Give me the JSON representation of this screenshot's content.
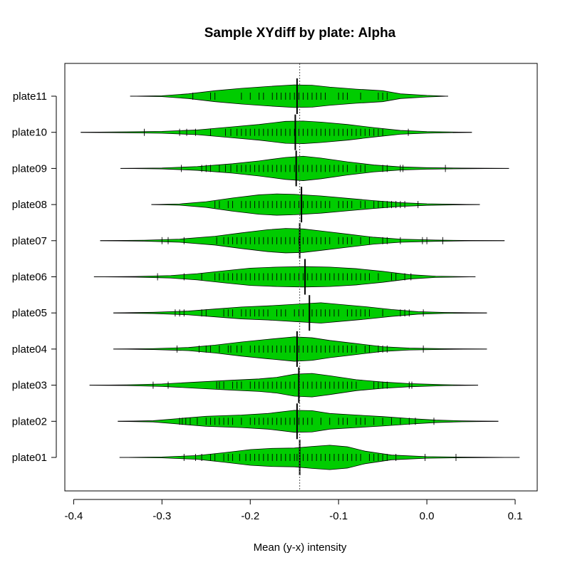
{
  "chart_data": {
    "type": "beanplot",
    "title": "Sample XYdiff by plate:  Alpha",
    "xlabel": "Mean (y-x) intensity",
    "ylabel": "",
    "xlim": [
      -0.41,
      0.125
    ],
    "x_ticks": [
      -0.4,
      -0.3,
      -0.2,
      -0.1,
      0.0,
      0.1
    ],
    "x_tick_labels": [
      "-0.4",
      "-0.3",
      "-0.2",
      "-0.1",
      "0.0",
      "0.1"
    ],
    "overall_mean": -0.144,
    "fill_color": "#00cc00",
    "categories": [
      "plate01",
      "plate02",
      "plate03",
      "plate04",
      "plate05",
      "plate06",
      "plate07",
      "plate08",
      "plate09",
      "plate10",
      "plate11"
    ],
    "series": [
      {
        "name": "plate01",
        "min": -0.348,
        "max": 0.105,
        "mean": -0.144,
        "shape": [
          [
            -0.348,
            0.0
          ],
          [
            -0.3,
            0.03
          ],
          [
            -0.26,
            0.12
          ],
          [
            -0.23,
            0.3
          ],
          [
            -0.2,
            0.5
          ],
          [
            -0.175,
            0.58
          ],
          [
            -0.15,
            0.6
          ],
          [
            -0.13,
            0.7
          ],
          [
            -0.11,
            0.78
          ],
          [
            -0.09,
            0.68
          ],
          [
            -0.07,
            0.4
          ],
          [
            -0.04,
            0.15
          ],
          [
            0.0,
            0.05
          ],
          [
            0.04,
            0.02
          ],
          [
            0.105,
            0.0
          ]
        ],
        "rugs": [
          -0.275,
          -0.262,
          -0.255,
          -0.245,
          -0.24,
          -0.23,
          -0.225,
          -0.22,
          -0.212,
          -0.205,
          -0.2,
          -0.195,
          -0.19,
          -0.185,
          -0.18,
          -0.175,
          -0.17,
          -0.165,
          -0.16,
          -0.155,
          -0.15,
          -0.147,
          -0.14,
          -0.135,
          -0.13,
          -0.125,
          -0.12,
          -0.115,
          -0.11,
          -0.105,
          -0.1,
          -0.095,
          -0.09,
          -0.085,
          -0.08,
          -0.075,
          -0.065,
          -0.06,
          -0.055,
          -0.05,
          -0.045,
          -0.035,
          -0.002,
          0.033
        ]
      },
      {
        "name": "plate02",
        "min": -0.35,
        "max": 0.081,
        "mean": -0.147,
        "shape": [
          [
            -0.35,
            0.0
          ],
          [
            -0.31,
            0.04
          ],
          [
            -0.28,
            0.18
          ],
          [
            -0.25,
            0.32
          ],
          [
            -0.21,
            0.4
          ],
          [
            -0.18,
            0.5
          ],
          [
            -0.15,
            0.7
          ],
          [
            -0.13,
            0.68
          ],
          [
            -0.11,
            0.5
          ],
          [
            -0.08,
            0.4
          ],
          [
            -0.05,
            0.3
          ],
          [
            -0.02,
            0.18
          ],
          [
            0.01,
            0.08
          ],
          [
            0.04,
            0.03
          ],
          [
            0.081,
            0.0
          ]
        ],
        "rugs": [
          -0.28,
          -0.277,
          -0.273,
          -0.268,
          -0.26,
          -0.25,
          -0.245,
          -0.24,
          -0.235,
          -0.23,
          -0.225,
          -0.22,
          -0.21,
          -0.2,
          -0.195,
          -0.19,
          -0.185,
          -0.18,
          -0.175,
          -0.17,
          -0.165,
          -0.16,
          -0.155,
          -0.15,
          -0.145,
          -0.14,
          -0.135,
          -0.13,
          -0.12,
          -0.11,
          -0.1,
          -0.095,
          -0.09,
          -0.08,
          -0.075,
          -0.07,
          -0.06,
          -0.05,
          -0.04,
          -0.03,
          -0.02,
          -0.013,
          0.008
        ]
      },
      {
        "name": "plate03",
        "min": -0.382,
        "max": 0.058,
        "mean": -0.145,
        "shape": [
          [
            -0.382,
            0.0
          ],
          [
            -0.34,
            0.02
          ],
          [
            -0.3,
            0.08
          ],
          [
            -0.26,
            0.2
          ],
          [
            -0.22,
            0.32
          ],
          [
            -0.19,
            0.4
          ],
          [
            -0.17,
            0.5
          ],
          [
            -0.15,
            0.7
          ],
          [
            -0.13,
            0.75
          ],
          [
            -0.11,
            0.6
          ],
          [
            -0.08,
            0.35
          ],
          [
            -0.05,
            0.2
          ],
          [
            -0.02,
            0.1
          ],
          [
            0.02,
            0.03
          ],
          [
            0.058,
            0.0
          ]
        ],
        "rugs": [
          -0.31,
          -0.293,
          -0.238,
          -0.235,
          -0.23,
          -0.22,
          -0.215,
          -0.21,
          -0.2,
          -0.195,
          -0.19,
          -0.185,
          -0.18,
          -0.175,
          -0.17,
          -0.165,
          -0.16,
          -0.155,
          -0.15,
          -0.145,
          -0.14,
          -0.135,
          -0.13,
          -0.125,
          -0.12,
          -0.115,
          -0.11,
          -0.105,
          -0.1,
          -0.095,
          -0.09,
          -0.085,
          -0.08,
          -0.06,
          -0.055,
          -0.05,
          -0.045,
          -0.02,
          -0.017
        ]
      },
      {
        "name": "plate04",
        "min": -0.355,
        "max": 0.068,
        "mean": -0.147,
        "shape": [
          [
            -0.355,
            0.0
          ],
          [
            -0.31,
            0.03
          ],
          [
            -0.27,
            0.1
          ],
          [
            -0.24,
            0.25
          ],
          [
            -0.21,
            0.45
          ],
          [
            -0.18,
            0.62
          ],
          [
            -0.15,
            0.78
          ],
          [
            -0.13,
            0.72
          ],
          [
            -0.11,
            0.55
          ],
          [
            -0.08,
            0.35
          ],
          [
            -0.05,
            0.15
          ],
          [
            -0.02,
            0.06
          ],
          [
            0.02,
            0.02
          ],
          [
            0.068,
            0.0
          ]
        ],
        "rugs": [
          -0.283,
          -0.258,
          -0.25,
          -0.245,
          -0.235,
          -0.225,
          -0.222,
          -0.215,
          -0.21,
          -0.2,
          -0.195,
          -0.19,
          -0.185,
          -0.18,
          -0.175,
          -0.17,
          -0.165,
          -0.16,
          -0.155,
          -0.15,
          -0.145,
          -0.14,
          -0.135,
          -0.13,
          -0.125,
          -0.12,
          -0.115,
          -0.11,
          -0.105,
          -0.1,
          -0.095,
          -0.09,
          -0.085,
          -0.08,
          -0.07,
          -0.065,
          -0.055,
          -0.05,
          -0.045,
          -0.004
        ]
      },
      {
        "name": "plate05",
        "min": -0.355,
        "max": 0.068,
        "mean": -0.133,
        "shape": [
          [
            -0.355,
            0.0
          ],
          [
            -0.31,
            0.04
          ],
          [
            -0.27,
            0.12
          ],
          [
            -0.24,
            0.25
          ],
          [
            -0.21,
            0.38
          ],
          [
            -0.18,
            0.45
          ],
          [
            -0.15,
            0.55
          ],
          [
            -0.12,
            0.65
          ],
          [
            -0.1,
            0.55
          ],
          [
            -0.07,
            0.4
          ],
          [
            -0.04,
            0.22
          ],
          [
            -0.01,
            0.08
          ],
          [
            0.02,
            0.03
          ],
          [
            0.068,
            0.0
          ]
        ],
        "rugs": [
          -0.285,
          -0.28,
          -0.275,
          -0.255,
          -0.25,
          -0.23,
          -0.225,
          -0.22,
          -0.21,
          -0.205,
          -0.2,
          -0.195,
          -0.19,
          -0.185,
          -0.18,
          -0.17,
          -0.165,
          -0.16,
          -0.15,
          -0.145,
          -0.14,
          -0.13,
          -0.125,
          -0.12,
          -0.115,
          -0.11,
          -0.105,
          -0.1,
          -0.09,
          -0.085,
          -0.08,
          -0.075,
          -0.07,
          -0.065,
          -0.05,
          -0.03,
          -0.025,
          -0.02,
          -0.004
        ]
      },
      {
        "name": "plate06",
        "min": -0.377,
        "max": 0.055,
        "mean": -0.138,
        "shape": [
          [
            -0.377,
            0.0
          ],
          [
            -0.33,
            0.02
          ],
          [
            -0.29,
            0.08
          ],
          [
            -0.26,
            0.2
          ],
          [
            -0.23,
            0.38
          ],
          [
            -0.2,
            0.55
          ],
          [
            -0.17,
            0.62
          ],
          [
            -0.14,
            0.65
          ],
          [
            -0.11,
            0.62
          ],
          [
            -0.08,
            0.52
          ],
          [
            -0.05,
            0.35
          ],
          [
            -0.02,
            0.14
          ],
          [
            0.01,
            0.04
          ],
          [
            0.055,
            0.0
          ]
        ],
        "rugs": [
          -0.305,
          -0.275,
          -0.255,
          -0.24,
          -0.235,
          -0.23,
          -0.225,
          -0.22,
          -0.215,
          -0.21,
          -0.205,
          -0.2,
          -0.195,
          -0.19,
          -0.185,
          -0.18,
          -0.175,
          -0.17,
          -0.165,
          -0.16,
          -0.155,
          -0.15,
          -0.145,
          -0.14,
          -0.135,
          -0.13,
          -0.125,
          -0.12,
          -0.115,
          -0.11,
          -0.105,
          -0.1,
          -0.095,
          -0.09,
          -0.085,
          -0.08,
          -0.075,
          -0.07,
          -0.065,
          -0.055,
          -0.04,
          -0.035,
          -0.025,
          -0.018
        ]
      },
      {
        "name": "plate07",
        "min": -0.37,
        "max": 0.088,
        "mean": -0.144,
        "shape": [
          [
            -0.37,
            0.0
          ],
          [
            -0.32,
            0.03
          ],
          [
            -0.28,
            0.1
          ],
          [
            -0.24,
            0.28
          ],
          [
            -0.21,
            0.5
          ],
          [
            -0.18,
            0.7
          ],
          [
            -0.16,
            0.78
          ],
          [
            -0.14,
            0.75
          ],
          [
            -0.12,
            0.62
          ],
          [
            -0.09,
            0.42
          ],
          [
            -0.06,
            0.22
          ],
          [
            -0.03,
            0.1
          ],
          [
            0.01,
            0.04
          ],
          [
            0.05,
            0.01
          ],
          [
            0.088,
            0.0
          ]
        ],
        "rugs": [
          -0.3,
          -0.293,
          -0.275,
          -0.238,
          -0.23,
          -0.225,
          -0.22,
          -0.215,
          -0.21,
          -0.205,
          -0.2,
          -0.195,
          -0.19,
          -0.185,
          -0.18,
          -0.175,
          -0.17,
          -0.165,
          -0.16,
          -0.155,
          -0.15,
          -0.145,
          -0.14,
          -0.135,
          -0.13,
          -0.125,
          -0.12,
          -0.115,
          -0.11,
          -0.1,
          -0.095,
          -0.09,
          -0.085,
          -0.075,
          -0.065,
          -0.05,
          -0.045,
          -0.03,
          -0.005,
          0.0,
          0.018
        ]
      },
      {
        "name": "plate08",
        "min": -0.312,
        "max": 0.06,
        "mean": -0.142,
        "shape": [
          [
            -0.312,
            0.0
          ],
          [
            -0.28,
            0.04
          ],
          [
            -0.25,
            0.18
          ],
          [
            -0.22,
            0.42
          ],
          [
            -0.19,
            0.62
          ],
          [
            -0.17,
            0.68
          ],
          [
            -0.15,
            0.65
          ],
          [
            -0.12,
            0.55
          ],
          [
            -0.09,
            0.4
          ],
          [
            -0.06,
            0.25
          ],
          [
            -0.03,
            0.12
          ],
          [
            0.0,
            0.05
          ],
          [
            0.03,
            0.02
          ],
          [
            0.06,
            0.0
          ]
        ],
        "rugs": [
          -0.24,
          -0.235,
          -0.225,
          -0.22,
          -0.21,
          -0.205,
          -0.2,
          -0.195,
          -0.19,
          -0.185,
          -0.18,
          -0.175,
          -0.17,
          -0.165,
          -0.16,
          -0.155,
          -0.15,
          -0.145,
          -0.14,
          -0.135,
          -0.13,
          -0.125,
          -0.12,
          -0.115,
          -0.11,
          -0.1,
          -0.095,
          -0.09,
          -0.085,
          -0.075,
          -0.07,
          -0.06,
          -0.055,
          -0.05,
          -0.045,
          -0.04,
          -0.035,
          -0.03,
          -0.025,
          -0.01
        ]
      },
      {
        "name": "plate09",
        "min": -0.347,
        "max": 0.093,
        "mean": -0.148,
        "shape": [
          [
            -0.347,
            0.0
          ],
          [
            -0.3,
            0.03
          ],
          [
            -0.26,
            0.12
          ],
          [
            -0.22,
            0.3
          ],
          [
            -0.19,
            0.48
          ],
          [
            -0.16,
            0.7
          ],
          [
            -0.14,
            0.78
          ],
          [
            -0.12,
            0.66
          ],
          [
            -0.09,
            0.42
          ],
          [
            -0.06,
            0.22
          ],
          [
            -0.03,
            0.1
          ],
          [
            0.0,
            0.05
          ],
          [
            0.04,
            0.02
          ],
          [
            0.093,
            0.0
          ]
        ],
        "rugs": [
          -0.278,
          -0.255,
          -0.25,
          -0.245,
          -0.235,
          -0.228,
          -0.222,
          -0.215,
          -0.21,
          -0.205,
          -0.2,
          -0.195,
          -0.19,
          -0.185,
          -0.18,
          -0.175,
          -0.17,
          -0.165,
          -0.16,
          -0.155,
          -0.15,
          -0.145,
          -0.14,
          -0.135,
          -0.13,
          -0.125,
          -0.12,
          -0.115,
          -0.11,
          -0.105,
          -0.1,
          -0.095,
          -0.09,
          -0.08,
          -0.075,
          -0.07,
          -0.05,
          -0.045,
          -0.03,
          -0.027,
          0.021
        ]
      },
      {
        "name": "plate10",
        "min": -0.392,
        "max": 0.051,
        "mean": -0.149,
        "shape": [
          [
            -0.392,
            0.0
          ],
          [
            -0.34,
            0.03
          ],
          [
            -0.3,
            0.06
          ],
          [
            -0.26,
            0.15
          ],
          [
            -0.22,
            0.35
          ],
          [
            -0.19,
            0.5
          ],
          [
            -0.16,
            0.7
          ],
          [
            -0.14,
            0.72
          ],
          [
            -0.12,
            0.65
          ],
          [
            -0.09,
            0.5
          ],
          [
            -0.06,
            0.3
          ],
          [
            -0.03,
            0.12
          ],
          [
            0.0,
            0.05
          ],
          [
            0.051,
            0.0
          ]
        ],
        "rugs": [
          -0.32,
          -0.28,
          -0.272,
          -0.262,
          -0.245,
          -0.228,
          -0.222,
          -0.215,
          -0.21,
          -0.205,
          -0.2,
          -0.195,
          -0.19,
          -0.185,
          -0.18,
          -0.175,
          -0.17,
          -0.165,
          -0.16,
          -0.155,
          -0.15,
          -0.145,
          -0.14,
          -0.135,
          -0.13,
          -0.125,
          -0.12,
          -0.115,
          -0.11,
          -0.105,
          -0.1,
          -0.095,
          -0.09,
          -0.085,
          -0.08,
          -0.075,
          -0.07,
          -0.065,
          -0.06,
          -0.055,
          -0.05,
          -0.021
        ]
      },
      {
        "name": "plate11",
        "min": -0.336,
        "max": 0.024,
        "mean": -0.147,
        "shape": [
          [
            -0.336,
            0.0
          ],
          [
            -0.3,
            0.03
          ],
          [
            -0.27,
            0.15
          ],
          [
            -0.24,
            0.35
          ],
          [
            -0.21,
            0.5
          ],
          [
            -0.18,
            0.62
          ],
          [
            -0.15,
            0.72
          ],
          [
            -0.13,
            0.7
          ],
          [
            -0.11,
            0.58
          ],
          [
            -0.08,
            0.45
          ],
          [
            -0.05,
            0.35
          ],
          [
            -0.03,
            0.15
          ],
          [
            0.0,
            0.05
          ],
          [
            0.024,
            0.0
          ]
        ],
        "rugs": [
          -0.265,
          -0.245,
          -0.24,
          -0.21,
          -0.2,
          -0.19,
          -0.185,
          -0.175,
          -0.17,
          -0.165,
          -0.16,
          -0.155,
          -0.15,
          -0.145,
          -0.14,
          -0.135,
          -0.13,
          -0.125,
          -0.12,
          -0.115,
          -0.1,
          -0.095,
          -0.09,
          -0.075,
          -0.055,
          -0.05,
          -0.045
        ]
      }
    ]
  }
}
